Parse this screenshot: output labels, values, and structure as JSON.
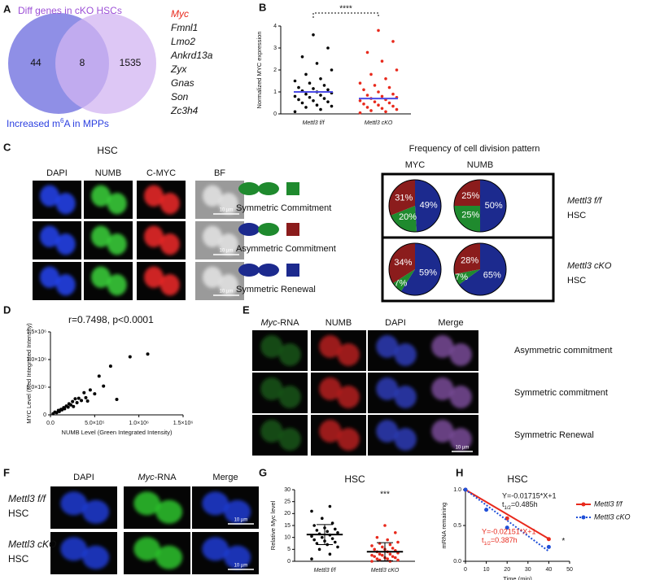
{
  "panel_labels": [
    "A",
    "B",
    "C",
    "D",
    "E",
    "F",
    "G",
    "H"
  ],
  "venn": {
    "title": "Diff genes in cKO HSCs",
    "counts": [
      44,
      8,
      1535
    ],
    "caption": [
      "Increased m",
      "6",
      "A in MPPs"
    ],
    "genes": [
      "Myc",
      "Fmnl1",
      "Lmo2",
      "Ankrd13a",
      "Zyx",
      "Gnas",
      "Son",
      "Zc3h4"
    ]
  },
  "panel_c": {
    "title": "HSC",
    "channels": [
      "DAPI",
      "NUMB",
      "C-MYC",
      "BF"
    ],
    "scale_bar": "10 µm",
    "pattern_title": "Frequency of cell division pattern",
    "pie_columns": [
      "MYC",
      "NUMB"
    ],
    "rows": [
      [
        "Mettl3 f/f",
        "HSC"
      ],
      [
        "Mettl3 cKO",
        "HSC"
      ]
    ],
    "patterns": [
      "Symmetric Commitment",
      "Asymmetric Commitment",
      "Symmetric Renewal"
    ],
    "pattern_colors": [
      "#1f8a2e",
      "#8b1c1c",
      "#1c2a8e"
    ]
  },
  "panel_e": {
    "channels": [
      [
        "Myc",
        "-RNA"
      ],
      [
        "NUMB"
      ],
      [
        "DAPI"
      ],
      [
        "Merge"
      ]
    ],
    "rows": [
      "Asymmetric commitment",
      "Symmetric commitment",
      "Symmetric Renewal"
    ]
  },
  "panel_f": {
    "channels": [
      [
        "DAPI"
      ],
      [
        "Myc",
        "-RNA"
      ],
      [
        "Merge"
      ]
    ],
    "rows": [
      [
        "Mettl3 f/f",
        "HSC"
      ],
      [
        "Mettl3 cKO",
        "HSC"
      ]
    ]
  },
  "chart_data": [
    {
      "type": "strip",
      "ylabel": "Normalized MYC expression",
      "ylim": [
        0,
        4
      ],
      "yticks": [
        0,
        1,
        2,
        3,
        4
      ],
      "categories": [
        "Mettl3 f/f",
        "Mettl3 cKO"
      ],
      "significance": "****",
      "center_color": "#4b4be6",
      "groups": [
        {
          "color": "#000000",
          "center": 1.0,
          "values": [
            0.1,
            0.2,
            0.3,
            0.35,
            0.4,
            0.5,
            0.55,
            0.6,
            0.65,
            0.7,
            0.75,
            0.8,
            0.85,
            0.9,
            0.95,
            1.0,
            1.05,
            1.1,
            1.15,
            1.2,
            1.3,
            1.4,
            1.5,
            1.6,
            1.8,
            2.0,
            2.3,
            2.6,
            3.0,
            3.6
          ]
        },
        {
          "color": "#e8291c",
          "center": 0.7,
          "values": [
            0.05,
            0.1,
            0.15,
            0.2,
            0.25,
            0.3,
            0.35,
            0.4,
            0.45,
            0.5,
            0.55,
            0.6,
            0.65,
            0.7,
            0.75,
            0.8,
            0.85,
            0.9,
            1.0,
            1.1,
            1.2,
            1.3,
            1.4,
            1.6,
            1.8,
            2.0,
            2.4,
            2.8,
            3.3,
            3.8
          ]
        }
      ]
    },
    {
      "type": "pie",
      "values": [
        20,
        31,
        49
      ],
      "value_labels": [
        "20%",
        "31%",
        "49%"
      ]
    },
    {
      "type": "pie",
      "values": [
        25,
        25,
        50
      ],
      "value_labels": [
        "25%",
        "25%",
        "50%"
      ]
    },
    {
      "type": "pie",
      "values": [
        7,
        34,
        59
      ],
      "value_labels": [
        "7%",
        "34%",
        "59%"
      ]
    },
    {
      "type": "pie",
      "values": [
        7,
        28,
        65
      ],
      "value_labels": [
        "7%",
        "28%",
        "65%"
      ]
    },
    {
      "type": "scatter",
      "annotation": "r=0.7498, p<0.0001",
      "xlabel": "NUMB Level (Green Integrated Intensity)",
      "ylabel": "MYC Level (Red Integrated Intensity)",
      "color": "#000000",
      "xlim": [
        0,
        1500000
      ],
      "ylim": [
        0,
        1500000
      ],
      "xticks": [
        {
          "value": 0,
          "label": "0.0"
        },
        {
          "value": 500000,
          "label": "5.0×10⁵"
        },
        {
          "value": 1000000,
          "label": "1.0×10⁶"
        },
        {
          "value": 1500000,
          "label": "1.5×10⁶"
        }
      ],
      "yticks": [
        0,
        {
          "value": 500000,
          "label": "5.0×10⁵"
        },
        {
          "value": 1000000,
          "label": "1.0×10⁶"
        },
        {
          "value": 1500000,
          "label": "1.5×10⁶"
        }
      ],
      "x": [
        30000,
        50000,
        70000,
        90000,
        100000,
        120000,
        130000,
        150000,
        160000,
        180000,
        200000,
        210000,
        230000,
        250000,
        260000,
        280000,
        300000,
        320000,
        350000,
        380000,
        400000,
        420000,
        450000,
        500000,
        550000,
        600000,
        680000,
        750000,
        900000,
        1100000
      ],
      "values": [
        20000,
        50000,
        40000,
        80000,
        60000,
        100000,
        90000,
        130000,
        110000,
        160000,
        140000,
        200000,
        180000,
        240000,
        150000,
        290000,
        220000,
        300000,
        260000,
        400000,
        310000,
        250000,
        450000,
        380000,
        700000,
        520000,
        880000,
        280000,
        1050000,
        1100000
      ]
    },
    {
      "type": "strip",
      "title": "HSC",
      "ylabel": "Relative Myc level",
      "ylim": [
        0,
        30
      ],
      "yticks": [
        0,
        5,
        10,
        15,
        20,
        25,
        30
      ],
      "categories": [
        "Mettl3 f/f",
        "Mettl3 cKO"
      ],
      "significance": "***",
      "center_color": "#000000",
      "groups": [
        {
          "color": "#000000",
          "center": 11.2,
          "sd": 4.2,
          "values": [
            1,
            3,
            5,
            6,
            7,
            7.5,
            8,
            8.5,
            9,
            9.5,
            10,
            10.5,
            11,
            11.5,
            12,
            12.5,
            13,
            13.5,
            14,
            15,
            16,
            18,
            21,
            23
          ]
        },
        {
          "color": "#e8291c",
          "center": 4.0,
          "sd": 3.8,
          "values": [
            0,
            0,
            0.5,
            0.5,
            1,
            1,
            1.5,
            1.5,
            2,
            2,
            2.5,
            2.5,
            3,
            3,
            3.5,
            4,
            4,
            4.5,
            5,
            5,
            5.5,
            6,
            6.5,
            7,
            7.5,
            8,
            9,
            10,
            12,
            15
          ]
        }
      ]
    },
    {
      "type": "line",
      "title": "HSC",
      "xlabel": "Time (min)",
      "ylabel": "mRNA remaining",
      "xlim": [
        0,
        50
      ],
      "ylim": [
        0,
        1
      ],
      "xticks": [
        0,
        10,
        20,
        30,
        40,
        50
      ],
      "yticks": [
        {
          "value": 0,
          "label": "0.0"
        },
        0.5,
        {
          "value": 1,
          "label": "1.0"
        }
      ],
      "series": [
        {
          "name": "Mettl3 f/f",
          "color": "#e8291c",
          "dash": false,
          "equation_color": "#111111",
          "fit_slope": -0.01715,
          "fit_intercept": 1,
          "equation": "Y=-0.01715*X+1",
          "half_life": [
            "t",
            "1/2",
            "=0.485h"
          ],
          "x": [
            0,
            20,
            40
          ],
          "values": [
            1.0,
            0.6,
            0.31
          ]
        },
        {
          "name": "Mettl3 cKO",
          "color": "#1f4fd8",
          "dash": true,
          "equation_color": "#e8291c",
          "fit_slope": -0.02151,
          "fit_intercept": 1,
          "equation": "Y=-0.02151*X+1",
          "half_life": [
            "t",
            "1/2",
            "=0.387h"
          ],
          "x": [
            0,
            10,
            20,
            40
          ],
          "values": [
            1.0,
            0.72,
            0.47,
            0.2
          ]
        }
      ],
      "annotation": {
        "text": "*",
        "x": 47,
        "y": 0.28
      }
    }
  ]
}
